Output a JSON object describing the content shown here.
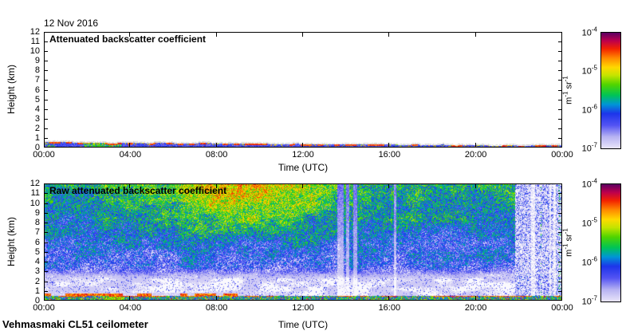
{
  "figure": {
    "date_label": "12 Nov 2016",
    "station_label": "Vehmasmaki CL51 ceilometer",
    "background_color": "#ffffff",
    "axis_color": "#000000"
  },
  "colormap": {
    "description": "log-scaled backscatter colormap, pale lavender (1e-7) through blue, green, yellow, red to dark purple (1e-4)",
    "stops": [
      [
        0,
        "#e9e5f9"
      ],
      [
        0.1,
        "#b7b3f2"
      ],
      [
        0.2,
        "#5353f3"
      ],
      [
        0.3,
        "#1d35ea"
      ],
      [
        0.38,
        "#0095d6"
      ],
      [
        0.46,
        "#00c455"
      ],
      [
        0.55,
        "#4fd400"
      ],
      [
        0.63,
        "#c3e400"
      ],
      [
        0.7,
        "#ffd900"
      ],
      [
        0.78,
        "#ff8a00"
      ],
      [
        0.86,
        "#f32300"
      ],
      [
        0.93,
        "#bd004c"
      ],
      [
        1.0,
        "#5c0062"
      ]
    ],
    "below_detection_color": "#faf9fd"
  },
  "chart_data": [
    {
      "type": "heatmap",
      "title": "Attenuated backscatter coefficient",
      "xlabel": "Time (UTC)",
      "ylabel": "Height (km)",
      "x_range": {
        "min_hour": 0,
        "max_hour": 24
      },
      "y_range": {
        "min_km": 0,
        "max_km": 12
      },
      "x_ticks": {
        "hours": [
          0,
          4,
          8,
          12,
          16,
          20,
          24
        ],
        "labels": [
          "00:00",
          "04:00",
          "08:00",
          "12:00",
          "16:00",
          "20:00",
          "00:00"
        ]
      },
      "y_ticks": {
        "km": [
          0,
          1,
          2,
          3,
          4,
          5,
          6,
          7,
          8,
          9,
          10,
          11,
          12
        ],
        "labels": [
          "0",
          "1",
          "2",
          "3",
          "4",
          "5",
          "6",
          "7",
          "8",
          "9",
          "10",
          "11",
          "12"
        ]
      },
      "colorbar": {
        "scale": "log10",
        "min": 1e-07,
        "max": 0.0001,
        "tick_base": "10",
        "tick_exponents": [
          -4,
          -5,
          -6,
          -7
        ],
        "units_segments": [
          {
            "t": "m"
          },
          {
            "t": "-1",
            "sup": true
          },
          {
            "t": " sr"
          },
          {
            "t": "-1",
            "sup": true
          }
        ]
      },
      "features": {
        "background": "clear white (below detection) above the surface layer",
        "aerosol_layer": {
          "description": "shallow surface aerosol layer present all 24 h, mostly blue (~2e-7 to 1e-6), thinning through the day",
          "top_km_at_start": 0.55,
          "top_km_at_end": 0.18,
          "green_patch_hours": [
            1.8,
            3.6
          ],
          "red_yellow_specks_at_layer_top": true,
          "gray_cap_color": "#d4d4d4"
        }
      }
    },
    {
      "type": "heatmap",
      "title": "Raw attenuated backscatter coefficient",
      "xlabel": "Time (UTC)",
      "ylabel": "Height (km)",
      "x_range": {
        "min_hour": 0,
        "max_hour": 24
      },
      "y_range": {
        "min_km": 0,
        "max_km": 12
      },
      "x_ticks": {
        "hours": [
          0,
          4,
          8,
          12,
          16,
          20,
          24
        ],
        "labels": [
          "00:00",
          "04:00",
          "08:00",
          "12:00",
          "16:00",
          "20:00",
          "00:00"
        ]
      },
      "y_ticks": {
        "km": [
          0,
          1,
          2,
          3,
          4,
          5,
          6,
          7,
          8,
          9,
          10,
          11,
          12
        ],
        "labels": [
          "0",
          "1",
          "2",
          "3",
          "4",
          "5",
          "6",
          "7",
          "8",
          "9",
          "10",
          "11",
          "12"
        ]
      },
      "colorbar": {
        "scale": "log10",
        "min": 1e-07,
        "max": 0.0001,
        "tick_base": "10",
        "tick_exponents": [
          -4,
          -5,
          -6,
          -7
        ],
        "units_segments": [
          {
            "t": "m"
          },
          {
            "t": "-1",
            "sup": true
          },
          {
            "t": " sr"
          },
          {
            "t": "-1",
            "sup": true
          }
        ]
      },
      "features": {
        "noise_profile": {
          "description": "range-corrected noise grows with height: near-white below ~2.5 km, blue speckle 3-8 km, green speckle 8-12 km",
          "v0": 0.115,
          "v_slope_per_km": 0.0295,
          "white_below_km": 2.5
        },
        "solar_noise": {
          "description": "daytime solar background enhancement (yellow/orange patches) aloft around 06:00-12:00",
          "center_hour": 9.3,
          "sigma_hours": 2.5,
          "extent_km": 3.2,
          "amplitude": 0.27
        },
        "pale_columns": {
          "description": "brief pale low-signal columns",
          "hours": [
            13.72,
            14.05,
            14.4,
            16.25
          ],
          "half_width_hours": [
            0.14,
            0.06,
            0.1,
            0.05
          ]
        },
        "low_signal_period": {
          "description": "after ~21:50 UTC signal drops: pale background with blue speckle and vertical stripes",
          "start_hour": 21.8
        },
        "surface_layer": {
          "description": "strong multicolour surface echo band 0-0.5 km with intermittent red/orange line at its top",
          "top_km": 0.5,
          "green_patch_hours": [
            2.7,
            3.7
          ],
          "red_line_all_day": true,
          "extra_red_line_until_hour": 9
        }
      }
    }
  ]
}
